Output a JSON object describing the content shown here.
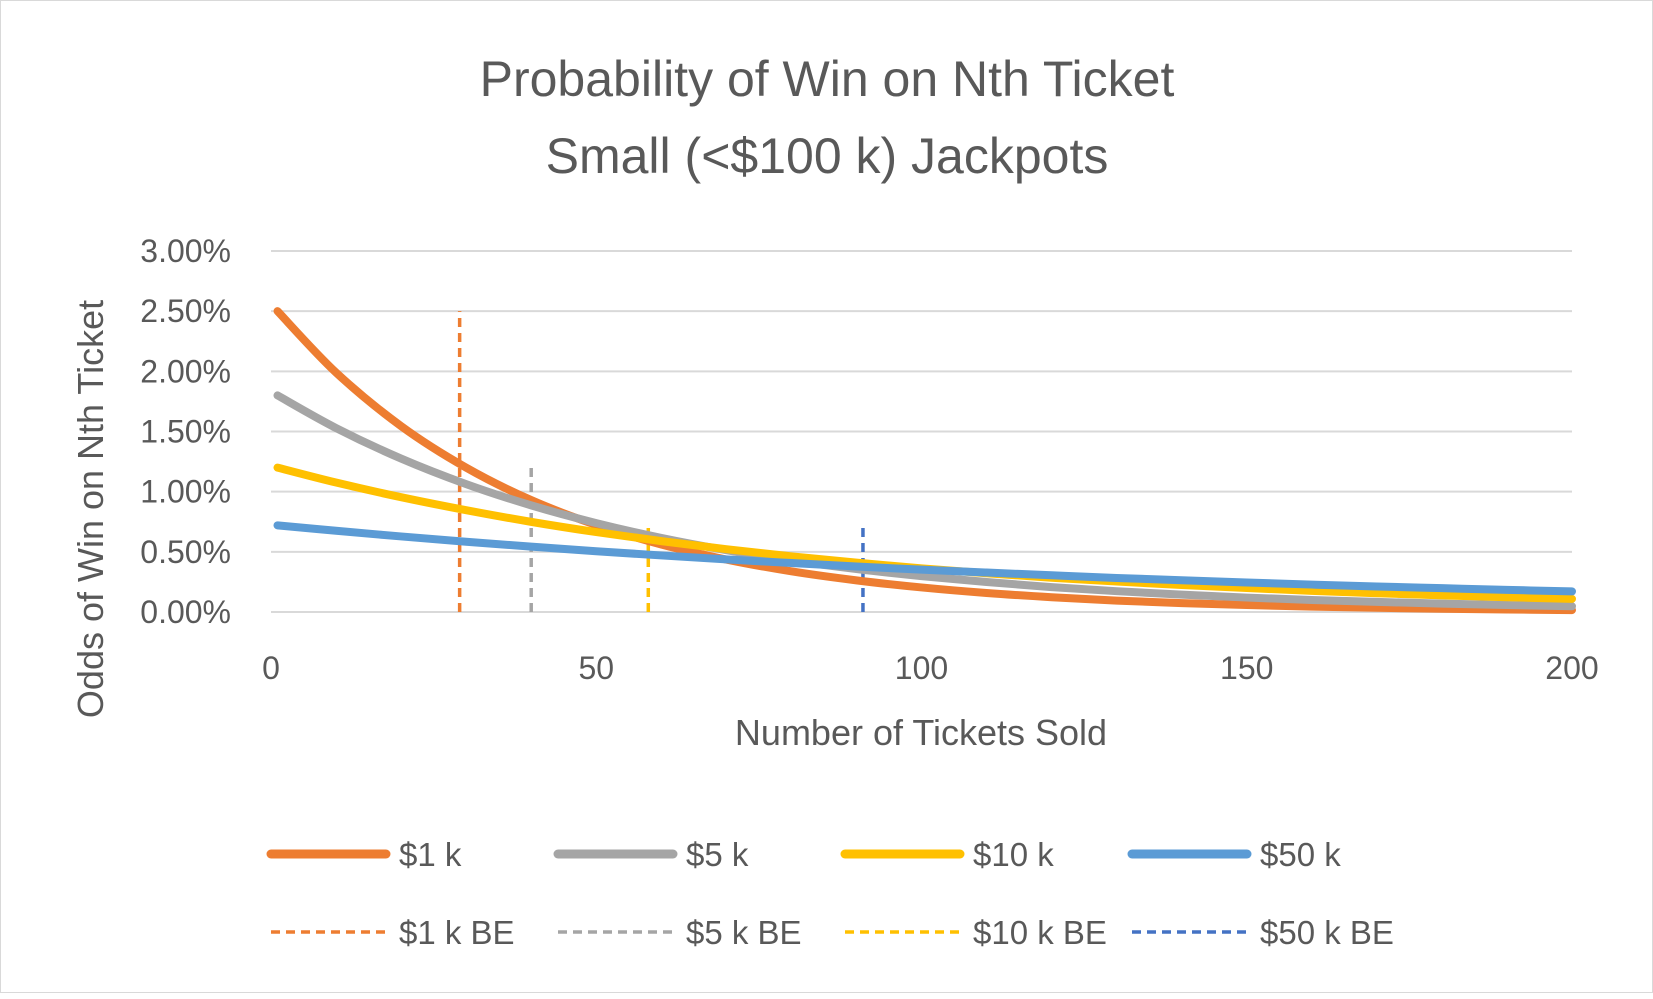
{
  "chart_data": {
    "type": "line",
    "title": [
      "Probability of Win on Nth Ticket",
      "Small (<$100 k) Jackpots"
    ],
    "xlabel": "Number of Tickets Sold",
    "ylabel": "Odds of Win on Nth Ticket",
    "xlim": [
      0,
      200
    ],
    "ylim": [
      0,
      3
    ],
    "x_ticks": [
      "0",
      "50",
      "100",
      "150",
      "200"
    ],
    "x_tick_values": [
      0,
      50,
      100,
      150,
      200
    ],
    "y_ticks": [
      "0.00%",
      "0.50%",
      "1.00%",
      "1.50%",
      "2.00%",
      "2.50%",
      "3.00%"
    ],
    "y_tick_values": [
      0,
      0.5,
      1,
      1.5,
      2,
      2.5,
      3
    ],
    "y_unit": "%",
    "grid": "horizontal",
    "legend_position": "bottom",
    "x": [
      1,
      10,
      20,
      30,
      40,
      50,
      60,
      70,
      80,
      90,
      100,
      110,
      120,
      130,
      140,
      150,
      160,
      170,
      180,
      190,
      200
    ],
    "series": [
      {
        "name": "$1 k",
        "color": "#ED7D31",
        "style": "solid",
        "values": [
          2.5,
          1.99,
          1.545,
          1.2,
          0.93,
          0.723,
          0.561,
          0.436,
          0.338,
          0.263,
          0.204,
          0.158,
          0.123,
          0.095,
          0.074,
          0.058,
          0.045,
          0.035,
          0.027,
          0.021,
          0.016
        ]
      },
      {
        "name": "$5 k",
        "color": "#A5A5A5",
        "style": "solid",
        "values": [
          1.8,
          1.529,
          1.275,
          1.063,
          0.886,
          0.739,
          0.616,
          0.514,
          0.429,
          0.357,
          0.298,
          0.249,
          0.207,
          0.173,
          0.144,
          0.12,
          0.1,
          0.084,
          0.07,
          0.058,
          0.048
        ]
      },
      {
        "name": "$10 k",
        "color": "#FFC000",
        "style": "solid",
        "values": [
          1.2,
          1.076,
          0.954,
          0.846,
          0.749,
          0.664,
          0.589,
          0.522,
          0.462,
          0.41,
          0.363,
          0.322,
          0.285,
          0.253,
          0.224,
          0.199,
          0.176,
          0.156,
          0.138,
          0.123,
          0.109
        ]
      },
      {
        "name": "$50 k",
        "color": "#5B9BD5",
        "style": "solid",
        "values": [
          0.72,
          0.675,
          0.628,
          0.584,
          0.543,
          0.505,
          0.47,
          0.437,
          0.407,
          0.378,
          0.352,
          0.328,
          0.305,
          0.283,
          0.264,
          0.245,
          0.228,
          0.212,
          0.198,
          0.184,
          0.171
        ]
      }
    ],
    "break_even_series": [
      {
        "name": "$1 k BE",
        "color": "#ED7D31",
        "style": "dashed",
        "x": 29,
        "y_range": [
          0,
          2.5
        ]
      },
      {
        "name": "$5 k BE",
        "color": "#A5A5A5",
        "style": "dashed",
        "x": 40,
        "y_range": [
          0,
          1.2
        ]
      },
      {
        "name": "$10 k BE",
        "color": "#FFC000",
        "style": "dashed",
        "x": 58,
        "y_range": [
          0,
          0.7
        ]
      },
      {
        "name": "$50 k BE",
        "color": "#4472C4",
        "style": "dashed",
        "x": 91,
        "y_range": [
          0,
          0.7
        ]
      }
    ]
  }
}
